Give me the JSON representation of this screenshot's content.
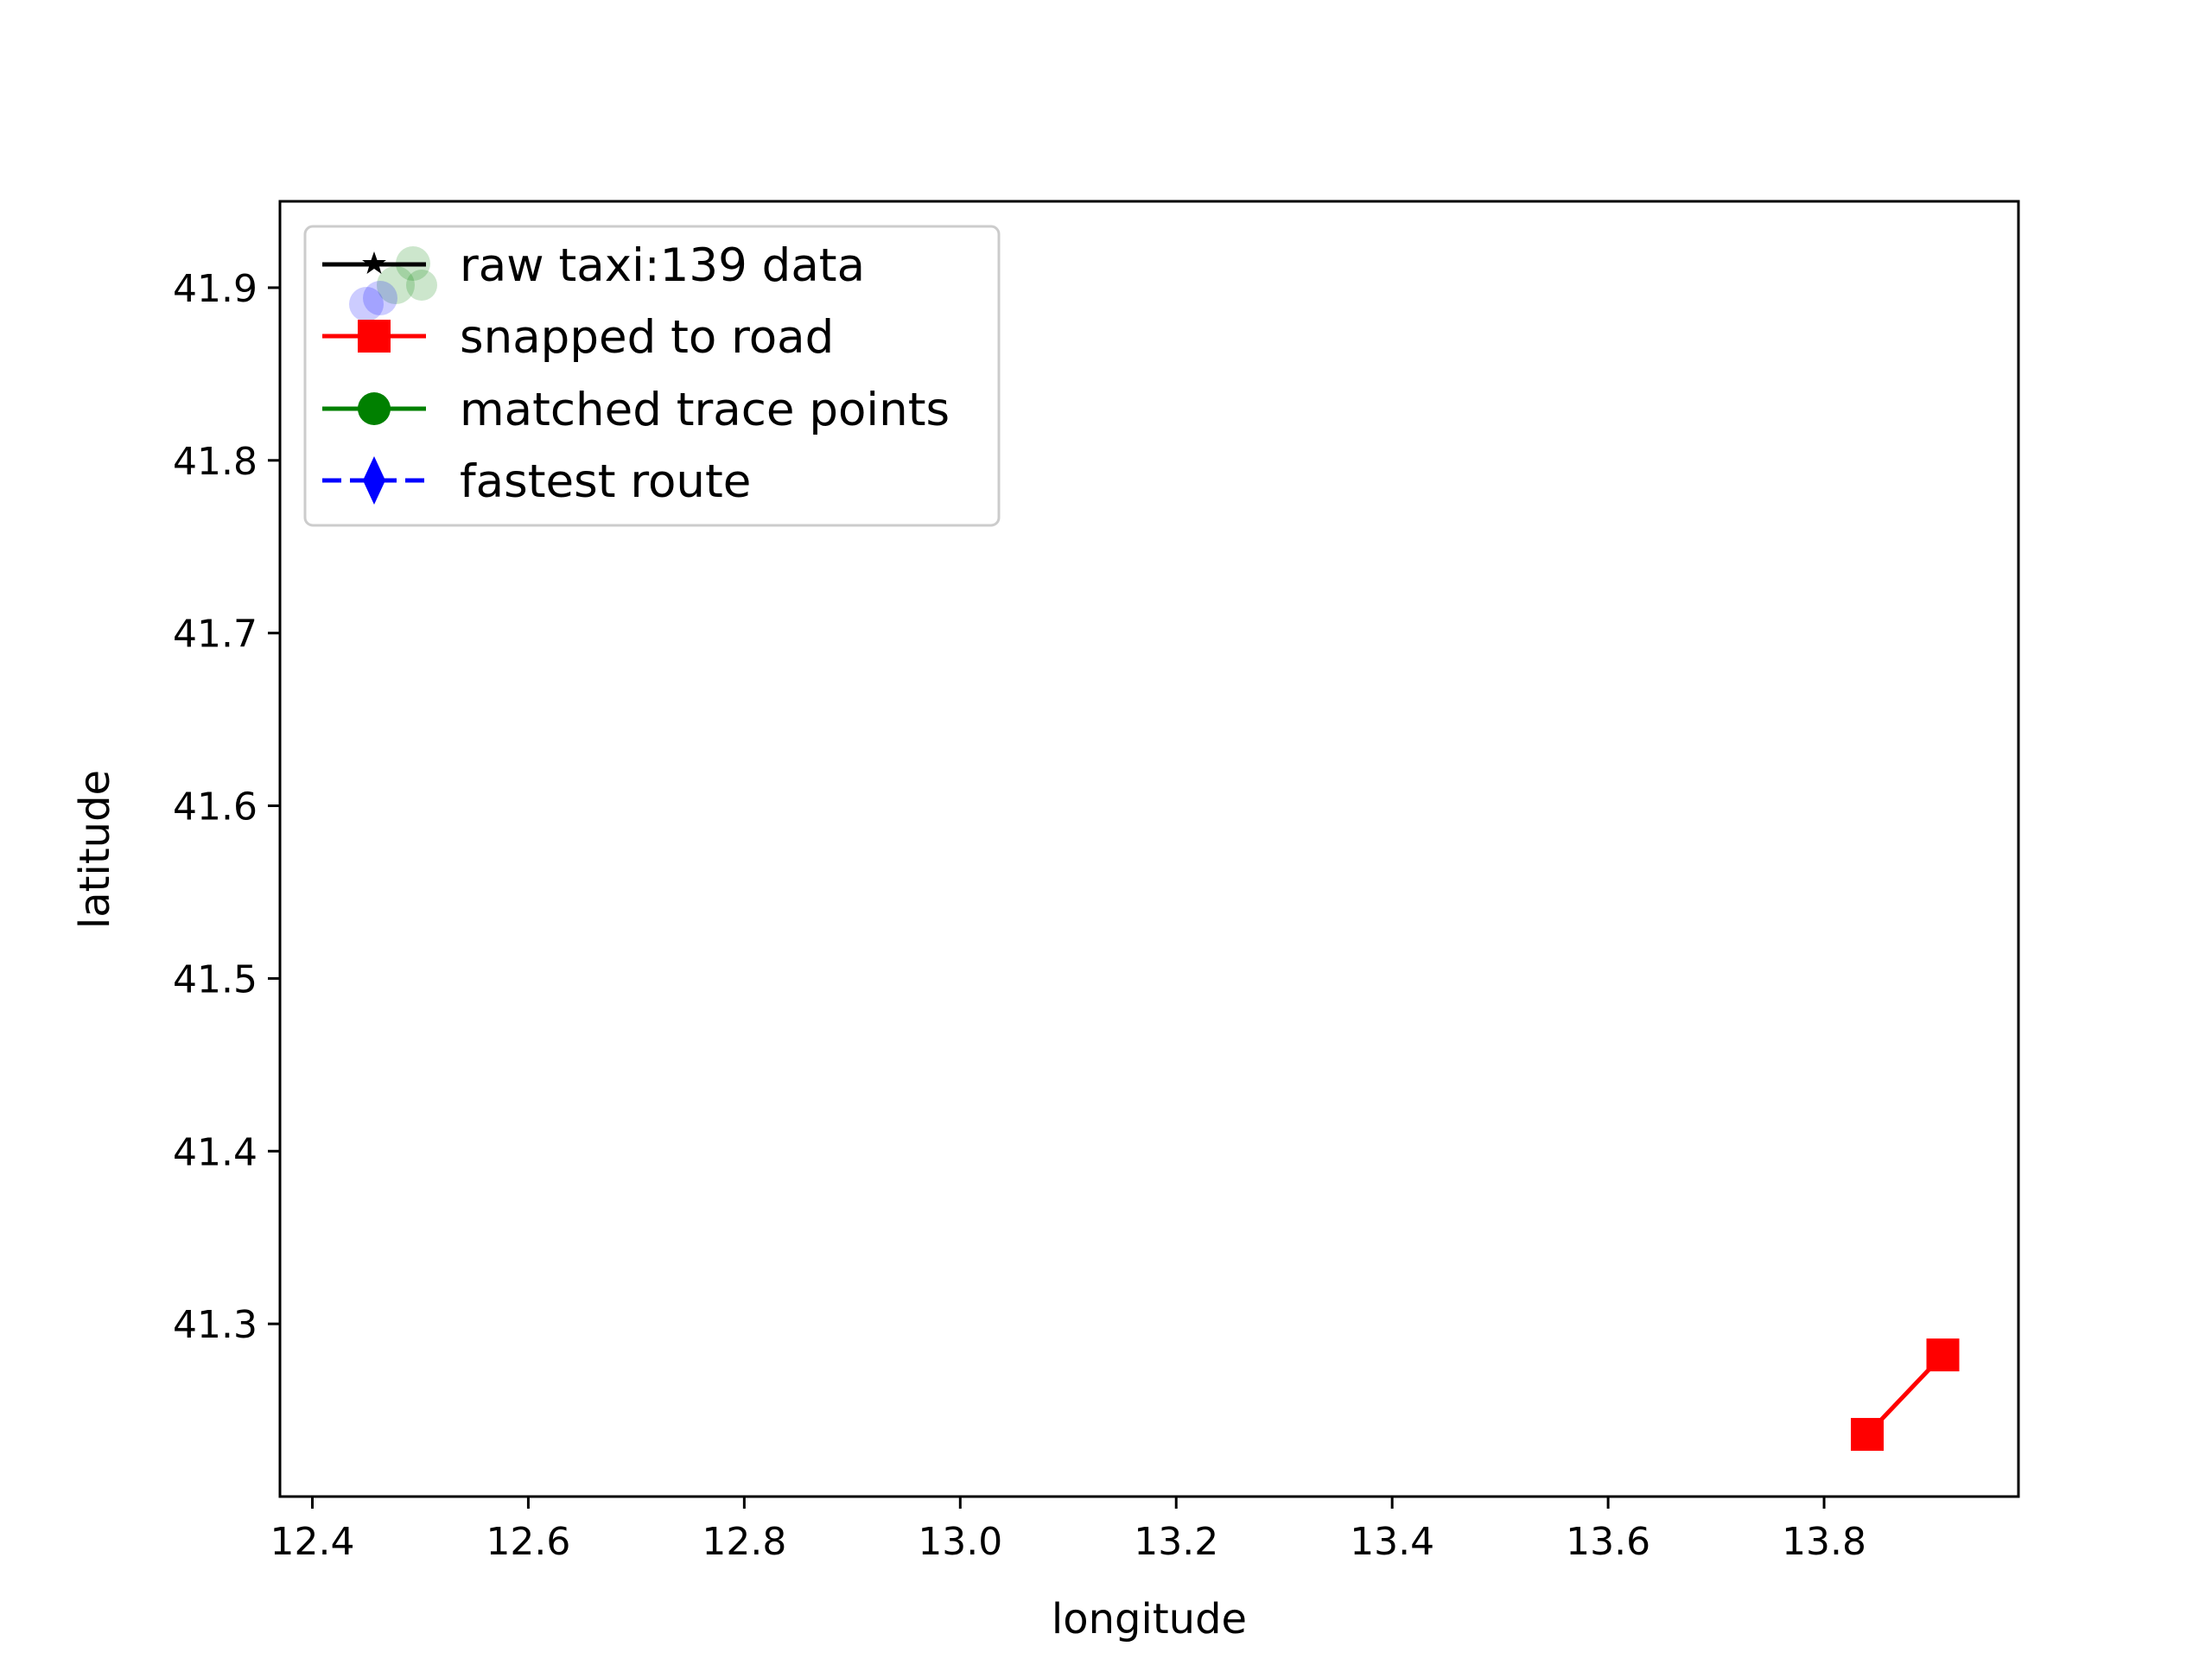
{
  "chart_data": {
    "type": "line",
    "title": "",
    "xlabel": "longitude",
    "ylabel": "latitude",
    "xlim": [
      12.37,
      13.98
    ],
    "ylim": [
      41.2,
      41.95
    ],
    "xticks": [
      "12.4",
      "12.6",
      "12.8",
      "13.0",
      "13.2",
      "13.4",
      "13.6",
      "13.8"
    ],
    "yticks": [
      "41.3",
      "41.4",
      "41.5",
      "41.6",
      "41.7",
      "41.8",
      "41.9"
    ],
    "grid": false,
    "legend_position": "upper-left",
    "legend": [
      {
        "label": "raw taxi:139 data",
        "color": "#000000",
        "marker": "star",
        "linestyle": "solid"
      },
      {
        "label": "snapped to road",
        "color": "#ff0000",
        "marker": "square",
        "linestyle": "solid"
      },
      {
        "label": "matched trace points",
        "color": "#008000",
        "marker": "circle",
        "linestyle": "solid"
      },
      {
        "label": "fastest route",
        "color": "#0000ff",
        "marker": "thin-diamond",
        "linestyle": "dashed"
      }
    ],
    "series": [
      {
        "name": "snapped to road",
        "color": "#ff0000",
        "marker": "square",
        "points": [
          {
            "x": 13.84,
            "y": 41.236
          },
          {
            "x": 13.91,
            "y": 41.282
          }
        ]
      }
    ]
  }
}
